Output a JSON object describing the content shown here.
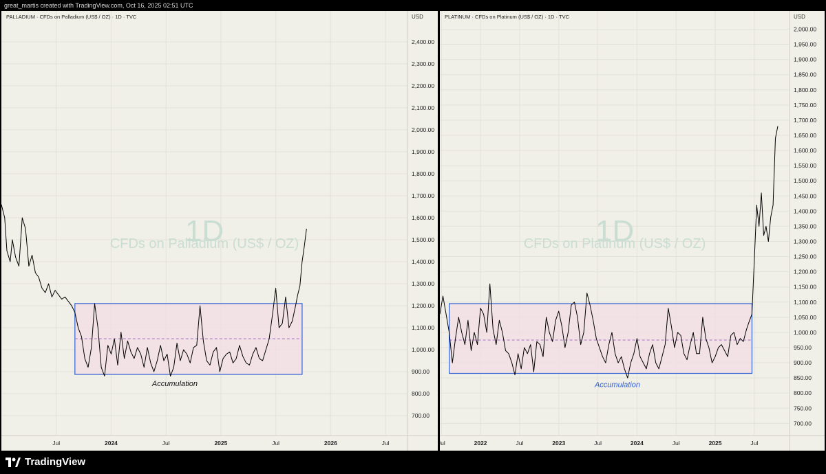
{
  "header": {
    "credit": "great_martis created with TradingView.com, Oct 16, 2025 02:51 UTC"
  },
  "footer": {
    "brand": "TradingView"
  },
  "colors": {
    "background": "#f0efe8",
    "box_border": "#2f5fd0",
    "box_fill": "#f4dde4",
    "midline": "#a070c0",
    "line": "#000000",
    "watermark": "#c9ddd2",
    "accumulation_left": "#111111",
    "accumulation_right": "#2f5fd0"
  },
  "chart_data": [
    {
      "type": "line",
      "title": "PALLADIUM · CFDs on Palladium (US$ / OZ) · 1D · TVC",
      "watermark_interval": "1D",
      "watermark_name": "CFDs on Palladium (US$ / OZ)",
      "currency": "USD",
      "ylim": [
        610,
        2540
      ],
      "yticks": [
        700,
        800,
        900,
        1000,
        1100,
        1200,
        1300,
        1400,
        1500,
        1600,
        1700,
        1800,
        1900,
        2000,
        2100,
        2200,
        2300,
        2400
      ],
      "ytick_labels": [
        "700.00",
        "800.00",
        "900.00",
        "1,000.00",
        "1,100.00",
        "1,200.00",
        "1,300.00",
        "1,400.00",
        "1,500.00",
        "1,600.00",
        "1,700.00",
        "1,800.00",
        "1,900.00",
        "2,000.00",
        "2,100.00",
        "2,200.00",
        "2,300.00",
        "2,400.00"
      ],
      "xlim": [
        2023.0,
        2026.7
      ],
      "xticks": [
        {
          "x": 2023.5,
          "label": "Jul",
          "bold": false
        },
        {
          "x": 2024.0,
          "label": "2024",
          "bold": true
        },
        {
          "x": 2024.5,
          "label": "Jul",
          "bold": false
        },
        {
          "x": 2025.0,
          "label": "2025",
          "bold": true
        },
        {
          "x": 2025.5,
          "label": "Jul",
          "bold": false
        },
        {
          "x": 2026.0,
          "label": "2026",
          "bold": true
        },
        {
          "x": 2026.5,
          "label": "Jul",
          "bold": false
        }
      ],
      "box": {
        "x0": 2023.67,
        "x1": 2025.74,
        "y0": 888,
        "y1": 1210,
        "mid": 1050
      },
      "annotation": {
        "text": "Accumulation",
        "x": 2024.58,
        "y": 835
      },
      "x": [
        2023.0,
        2023.03,
        2023.05,
        2023.08,
        2023.1,
        2023.13,
        2023.16,
        2023.19,
        2023.22,
        2023.25,
        2023.28,
        2023.31,
        2023.34,
        2023.37,
        2023.4,
        2023.43,
        2023.46,
        2023.49,
        2023.52,
        2023.55,
        2023.58,
        2023.61,
        2023.64,
        2023.67,
        2023.7,
        2023.73,
        2023.76,
        2023.79,
        2023.82,
        2023.85,
        2023.88,
        2023.91,
        2023.94,
        2023.97,
        2024.0,
        2024.03,
        2024.06,
        2024.09,
        2024.12,
        2024.15,
        2024.18,
        2024.21,
        2024.24,
        2024.27,
        2024.3,
        2024.33,
        2024.36,
        2024.39,
        2024.42,
        2024.45,
        2024.48,
        2024.51,
        2024.54,
        2024.57,
        2024.6,
        2024.63,
        2024.66,
        2024.69,
        2024.72,
        2024.75,
        2024.78,
        2024.81,
        2024.84,
        2024.87,
        2024.9,
        2024.93,
        2024.96,
        2024.99,
        2025.02,
        2025.05,
        2025.08,
        2025.11,
        2025.14,
        2025.17,
        2025.2,
        2025.23,
        2025.26,
        2025.29,
        2025.32,
        2025.35,
        2025.38,
        2025.41,
        2025.44,
        2025.47,
        2025.5,
        2025.53,
        2025.56,
        2025.59,
        2025.62,
        2025.65,
        2025.68,
        2025.7,
        2025.72,
        2025.74,
        2025.76,
        2025.78
      ],
      "y": [
        1660,
        1600,
        1450,
        1400,
        1500,
        1420,
        1380,
        1600,
        1550,
        1380,
        1430,
        1350,
        1330,
        1280,
        1260,
        1300,
        1240,
        1270,
        1250,
        1230,
        1240,
        1220,
        1200,
        1170,
        1100,
        1060,
        960,
        920,
        1010,
        1210,
        1100,
        920,
        880,
        1020,
        980,
        1050,
        930,
        1080,
        960,
        1040,
        990,
        960,
        1010,
        980,
        920,
        1010,
        940,
        900,
        950,
        1020,
        950,
        980,
        880,
        920,
        1030,
        950,
        1000,
        980,
        940,
        1010,
        1020,
        1200,
        1040,
        950,
        930,
        990,
        1010,
        900,
        960,
        980,
        990,
        940,
        960,
        1020,
        970,
        940,
        930,
        980,
        1010,
        960,
        950,
        1000,
        1050,
        1160,
        1280,
        1100,
        1120,
        1240,
        1100,
        1130,
        1200,
        1250,
        1290,
        1400,
        1470,
        1550
      ]
    },
    {
      "type": "line",
      "title": "PLATINUM · CFDs on Platinum (US$ / OZ) · 1D · TVC",
      "watermark_interval": "1D",
      "watermark_name": "CFDs on Platinum (US$ / OZ)",
      "currency": "USD",
      "ylim": [
        660,
        2060
      ],
      "yticks": [
        700,
        750,
        800,
        850,
        900,
        950,
        1000,
        1050,
        1100,
        1150,
        1200,
        1250,
        1300,
        1350,
        1400,
        1450,
        1500,
        1550,
        1600,
        1650,
        1700,
        1750,
        1800,
        1850,
        1900,
        1950,
        2000
      ],
      "ytick_labels": [
        "700.00",
        "750.00",
        "800.00",
        "850.00",
        "900.00",
        "950.00",
        "1,000.00",
        "1,050.00",
        "1,100.00",
        "1,150.00",
        "1,200.00",
        "1,250.00",
        "1,300.00",
        "1,350.00",
        "1,400.00",
        "1,450.00",
        "1,500.00",
        "1,550.00",
        "1,600.00",
        "1,650.00",
        "1,700.00",
        "1,750.00",
        "1,800.00",
        "1,850.00",
        "1,900.00",
        "1,950.00",
        "2,000.00"
      ],
      "xlim": [
        2021.48,
        2025.95
      ],
      "xticks": [
        {
          "x": 2021.5,
          "label": "Jul",
          "bold": false
        },
        {
          "x": 2022.0,
          "label": "2022",
          "bold": true
        },
        {
          "x": 2022.5,
          "label": "Jul",
          "bold": false
        },
        {
          "x": 2023.0,
          "label": "2023",
          "bold": true
        },
        {
          "x": 2023.5,
          "label": "Jul",
          "bold": false
        },
        {
          "x": 2024.0,
          "label": "2024",
          "bold": true
        },
        {
          "x": 2024.5,
          "label": "Jul",
          "bold": false
        },
        {
          "x": 2025.0,
          "label": "2025",
          "bold": true
        },
        {
          "x": 2025.5,
          "label": "Jul",
          "bold": false
        }
      ],
      "box": {
        "x0": 2021.6,
        "x1": 2025.47,
        "y0": 865,
        "y1": 1095,
        "mid": 975
      },
      "annotation": {
        "text": "Accumulation",
        "x": 2023.75,
        "y": 820
      },
      "x": [
        2021.48,
        2021.52,
        2021.56,
        2021.6,
        2021.64,
        2021.68,
        2021.72,
        2021.76,
        2021.8,
        2021.84,
        2021.88,
        2021.92,
        2021.96,
        2022.0,
        2022.04,
        2022.08,
        2022.12,
        2022.16,
        2022.2,
        2022.24,
        2022.28,
        2022.32,
        2022.36,
        2022.4,
        2022.44,
        2022.48,
        2022.52,
        2022.56,
        2022.6,
        2022.64,
        2022.68,
        2022.72,
        2022.76,
        2022.8,
        2022.84,
        2022.88,
        2022.92,
        2022.96,
        2023.0,
        2023.04,
        2023.08,
        2023.12,
        2023.16,
        2023.2,
        2023.24,
        2023.28,
        2023.32,
        2023.36,
        2023.4,
        2023.44,
        2023.48,
        2023.52,
        2023.56,
        2023.6,
        2023.64,
        2023.68,
        2023.72,
        2023.76,
        2023.8,
        2023.84,
        2023.88,
        2023.92,
        2023.96,
        2024.0,
        2024.04,
        2024.08,
        2024.12,
        2024.16,
        2024.2,
        2024.24,
        2024.28,
        2024.32,
        2024.36,
        2024.4,
        2024.44,
        2024.48,
        2024.52,
        2024.56,
        2024.6,
        2024.64,
        2024.68,
        2024.72,
        2024.76,
        2024.8,
        2024.84,
        2024.88,
        2024.92,
        2024.96,
        2025.0,
        2025.04,
        2025.08,
        2025.12,
        2025.16,
        2025.2,
        2025.24,
        2025.28,
        2025.32,
        2025.36,
        2025.4,
        2025.44,
        2025.47,
        2025.5,
        2025.53,
        2025.56,
        2025.59,
        2025.62,
        2025.65,
        2025.68,
        2025.71,
        2025.74,
        2025.77,
        2025.8
      ],
      "y": [
        1060,
        1120,
        1060,
        1000,
        900,
        980,
        1050,
        1000,
        960,
        1040,
        940,
        1000,
        960,
        1080,
        1060,
        1000,
        1160,
        1010,
        960,
        1040,
        1000,
        940,
        930,
        900,
        860,
        930,
        880,
        950,
        930,
        960,
        870,
        970,
        960,
        920,
        1050,
        1000,
        970,
        1040,
        1070,
        1020,
        950,
        1000,
        1090,
        1100,
        1050,
        960,
        1000,
        1130,
        1090,
        1040,
        980,
        950,
        920,
        900,
        960,
        1000,
        930,
        900,
        920,
        880,
        850,
        900,
        930,
        980,
        920,
        900,
        880,
        930,
        960,
        900,
        880,
        920,
        960,
        1080,
        1020,
        950,
        1000,
        990,
        930,
        910,
        960,
        1000,
        930,
        930,
        1050,
        980,
        950,
        900,
        920,
        950,
        960,
        940,
        920,
        990,
        1000,
        960,
        980,
        970,
        1010,
        1040,
        1060,
        1240,
        1420,
        1350,
        1460,
        1320,
        1350,
        1300,
        1380,
        1420,
        1640,
        1680
      ]
    }
  ]
}
